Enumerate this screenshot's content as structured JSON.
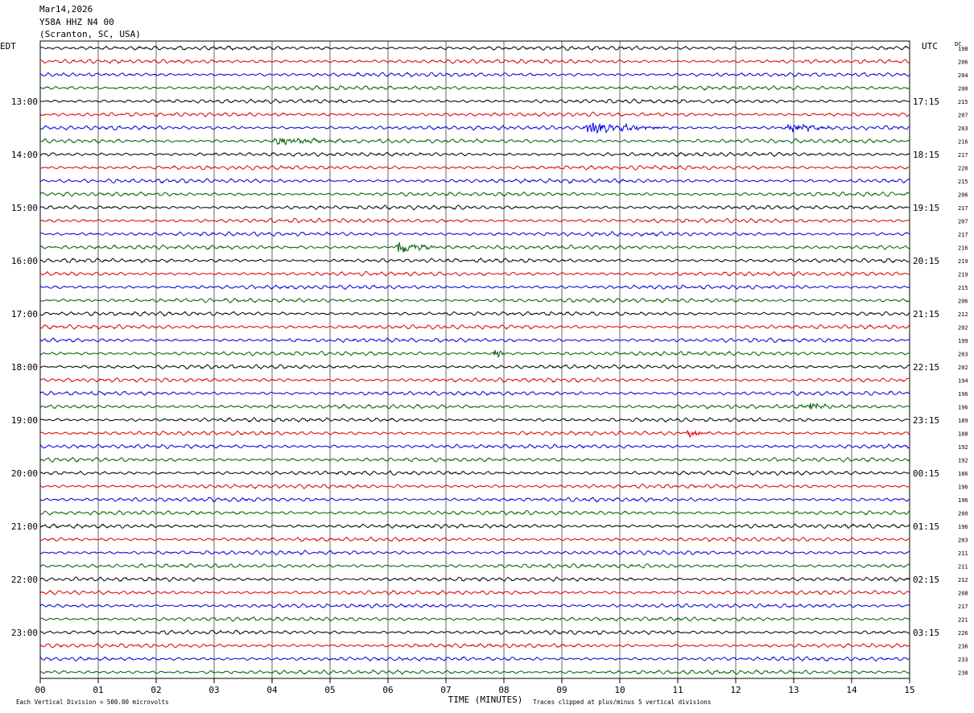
{
  "header": {
    "date": "Mar14,2026",
    "station": "Y58A HHZ N4 00",
    "location": "(Scranton, SC, USA)"
  },
  "left_tz": "EDT",
  "right_tz": "UTC",
  "dc_label": "DC",
  "footer": {
    "scale_note": "Each Vertical Division =  500.00 microvolts",
    "clip_note": "Traces clipped at plus/minus 5 vertical divisions"
  },
  "colors": {
    "trace_cycle": [
      "#000000",
      "#e00000",
      "#0000e0",
      "#006000"
    ],
    "grid": "#000000",
    "background": "#ffffff"
  },
  "chart_data": {
    "type": "line",
    "subtype": "helicorder",
    "xlabel": "TIME (MINUTES)",
    "x_ticks": [
      "00",
      "01",
      "02",
      "03",
      "04",
      "05",
      "06",
      "07",
      "08",
      "09",
      "10",
      "11",
      "12",
      "13",
      "14",
      "15"
    ],
    "xlim": [
      0,
      15
    ],
    "left_hour_labels": [
      "13:00",
      "14:00",
      "15:00",
      "16:00",
      "17:00",
      "18:00",
      "19:00",
      "20:00",
      "21:00",
      "22:00",
      "23:00"
    ],
    "right_hour_labels": [
      "17:15",
      "18:15",
      "19:15",
      "20:15",
      "21:15",
      "22:15",
      "23:15",
      "00:15",
      "01:15",
      "02:15",
      "03:15"
    ],
    "first_labeled_row": 4,
    "rows_per_hour": 4,
    "dc_offsets": [
      198,
      206,
      204,
      200,
      215,
      207,
      203,
      216,
      217,
      220,
      215,
      206,
      217,
      207,
      217,
      216,
      219,
      219,
      215,
      206,
      212,
      202,
      199,
      203,
      202,
      194,
      196,
      196,
      189,
      188,
      192,
      192,
      186,
      196,
      196,
      200,
      196,
      203,
      211,
      211,
      212,
      208,
      217,
      221,
      226,
      236,
      233,
      238
    ],
    "events": [
      {
        "row": 6,
        "minute_start": 9.3,
        "minute_end": 11.0,
        "amplitude": 2.2
      },
      {
        "row": 6,
        "minute_start": 12.8,
        "minute_end": 14.0,
        "amplitude": 1.3
      },
      {
        "row": 7,
        "minute_start": 3.9,
        "minute_end": 5.3,
        "amplitude": 1.5
      },
      {
        "row": 15,
        "minute_start": 6.1,
        "minute_end": 6.8,
        "amplitude": 3.0
      },
      {
        "row": 23,
        "minute_start": 7.8,
        "minute_end": 8.1,
        "amplitude": 1.8
      },
      {
        "row": 27,
        "minute_start": 13.1,
        "minute_end": 13.9,
        "amplitude": 1.5
      },
      {
        "row": 29,
        "minute_start": 11.1,
        "minute_end": 11.6,
        "amplitude": 1.6
      }
    ]
  }
}
